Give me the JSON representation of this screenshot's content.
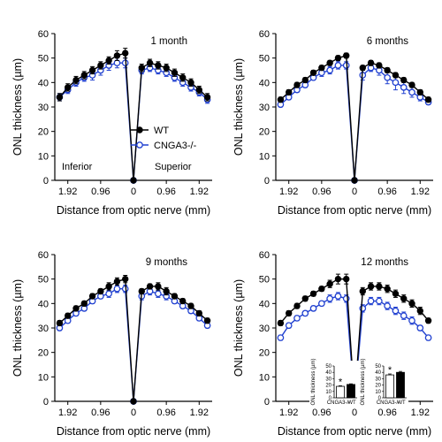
{
  "chart_data": [
    {
      "type": "line",
      "title": "1 month",
      "xlabel": "Distance from optic nerve (mm)",
      "ylabel": "ONL thickness (µm)",
      "xticks": [
        "1.92",
        "0.96",
        "0",
        "0.96",
        "1.92"
      ],
      "yticks": [
        "0",
        "10",
        "20",
        "30",
        "40",
        "50",
        "60"
      ],
      "ylim": [
        0,
        60
      ],
      "x": [
        -2.16,
        -1.92,
        -1.68,
        -1.44,
        -1.2,
        -0.96,
        -0.72,
        -0.48,
        -0.24,
        0,
        0.24,
        0.48,
        0.72,
        0.96,
        1.2,
        1.44,
        1.68,
        1.92,
        2.16
      ],
      "series": [
        {
          "name": "WT",
          "color": "#000000",
          "values": [
            34,
            38,
            41,
            43,
            45,
            47,
            49,
            51,
            52,
            0,
            46,
            48,
            47,
            46,
            44,
            42,
            40,
            37,
            34
          ],
          "errors": [
            1.5,
            1.5,
            1.5,
            1.5,
            1.5,
            1.5,
            1.5,
            2,
            2,
            0,
            1.5,
            1.5,
            1.5,
            1.5,
            1.5,
            1.5,
            1.5,
            1.5,
            1.5
          ]
        },
        {
          "name": "CNGA3-/-",
          "color": "#2040d0",
          "values": [
            34,
            37,
            40,
            42,
            43,
            45,
            47,
            48,
            48,
            0,
            45,
            46,
            45,
            44,
            42,
            40,
            38,
            36,
            33
          ],
          "errors": [
            1.5,
            1.5,
            1.5,
            1.5,
            2,
            2,
            2,
            2,
            2,
            0,
            1.5,
            1.5,
            1.5,
            1.5,
            1.5,
            1.5,
            1.5,
            1.5,
            1.5
          ]
        }
      ],
      "legend": "center-right",
      "annotations": [
        "Inferior",
        "Superior"
      ]
    },
    {
      "type": "line",
      "title": "6 months",
      "xlabel": "Distance from optic nerve (mm)",
      "ylabel": "ONL thickness (µm)",
      "xticks": [
        "1.92",
        "0.96",
        "0",
        "0.96",
        "1.92"
      ],
      "yticks": [
        "0",
        "10",
        "20",
        "30",
        "40",
        "50",
        "60"
      ],
      "ylim": [
        0,
        60
      ],
      "x": [
        -2.16,
        -1.92,
        -1.68,
        -1.44,
        -1.2,
        -0.96,
        -0.72,
        -0.48,
        -0.24,
        0,
        0.24,
        0.48,
        0.72,
        0.96,
        1.2,
        1.44,
        1.68,
        1.92,
        2.16
      ],
      "series": [
        {
          "name": "WT",
          "color": "#000000",
          "values": [
            33,
            36,
            39,
            41,
            44,
            46,
            48,
            50,
            51,
            0,
            46,
            48,
            47,
            45,
            43,
            41,
            39,
            36,
            33
          ],
          "errors": [
            1,
            1,
            1,
            1,
            1,
            1,
            1,
            1,
            1,
            0,
            1,
            1,
            1,
            1,
            1,
            1,
            1,
            1,
            1
          ]
        },
        {
          "name": "CNGA3-/-",
          "color": "#2040d0",
          "values": [
            31,
            34,
            37,
            39,
            42,
            44,
            45,
            47,
            47,
            0,
            43,
            46,
            45,
            42,
            40,
            38,
            36,
            34,
            32
          ],
          "errors": [
            1,
            1,
            1,
            1,
            1,
            1.5,
            1.5,
            1.5,
            1.5,
            0,
            2,
            1.5,
            2,
            2.5,
            3,
            2.5,
            2,
            1.5,
            1
          ]
        }
      ]
    },
    {
      "type": "line",
      "title": "9 months",
      "xlabel": "Distance from optic nerve (mm)",
      "ylabel": "ONL thickness (µm)",
      "xticks": [
        "1.92",
        "0.96",
        "0",
        "0.96",
        "1.92"
      ],
      "yticks": [
        "0",
        "10",
        "20",
        "30",
        "40",
        "50",
        "60"
      ],
      "ylim": [
        0,
        60
      ],
      "x": [
        -2.16,
        -1.92,
        -1.68,
        -1.44,
        -1.2,
        -0.96,
        -0.72,
        -0.48,
        -0.24,
        0,
        0.24,
        0.48,
        0.72,
        0.96,
        1.2,
        1.44,
        1.68,
        1.92,
        2.16
      ],
      "series": [
        {
          "name": "WT",
          "color": "#000000",
          "values": [
            32,
            35,
            38,
            40,
            43,
            45,
            47,
            49,
            50,
            0,
            45,
            47,
            47,
            45,
            43,
            41,
            39,
            36,
            33
          ],
          "errors": [
            1,
            1,
            1,
            1,
            1,
            1,
            1.5,
            1.5,
            1.5,
            0,
            1,
            1,
            1.5,
            1.5,
            1,
            1,
            1,
            1,
            1
          ]
        },
        {
          "name": "CNGA3-/-",
          "color": "#2040d0",
          "values": [
            30,
            33,
            36,
            38,
            41,
            43,
            44,
            46,
            46,
            0,
            43,
            45,
            44,
            43,
            41,
            39,
            37,
            34,
            31
          ],
          "errors": [
            1,
            1,
            1,
            1,
            1,
            1,
            1.5,
            1.5,
            1.5,
            0,
            1.5,
            1.5,
            1.5,
            1.5,
            1,
            1,
            1,
            1,
            1
          ]
        }
      ]
    },
    {
      "type": "line",
      "title": "12 months",
      "xlabel": "Distance from optic nerve (mm)",
      "ylabel": "ONL thickness (µm)",
      "xticks": [
        "1.92",
        "0.96",
        "0",
        "0.96",
        "1.92"
      ],
      "yticks": [
        "0",
        "10",
        "20",
        "30",
        "40",
        "50",
        "60"
      ],
      "ylim": [
        0,
        60
      ],
      "x": [
        -2.16,
        -1.92,
        -1.68,
        -1.44,
        -1.2,
        -0.96,
        -0.72,
        -0.48,
        -0.24,
        0,
        0.24,
        0.48,
        0.72,
        0.96,
        1.2,
        1.44,
        1.68,
        1.92,
        2.16
      ],
      "series": [
        {
          "name": "WT",
          "color": "#000000",
          "values": [
            32,
            36,
            39,
            42,
            44,
            46,
            48,
            50,
            50,
            0,
            45,
            47,
            47,
            46,
            44,
            42,
            40,
            37,
            33
          ],
          "errors": [
            1,
            1,
            1,
            1,
            1,
            1,
            1.5,
            2,
            2,
            0,
            1.5,
            1.5,
            1.5,
            1.5,
            1.5,
            1.5,
            1.5,
            1.5,
            1
          ]
        },
        {
          "name": "CNGA3-/-",
          "color": "#2040d0",
          "values": [
            26,
            31,
            34,
            36,
            38,
            40,
            42,
            43,
            42,
            0,
            38,
            41,
            41,
            39,
            37,
            35,
            33,
            30,
            26
          ],
          "errors": [
            1,
            1,
            1,
            1,
            1,
            1,
            1.5,
            1.5,
            1.5,
            0,
            1.5,
            1.5,
            1.5,
            1.5,
            1.5,
            1.5,
            1.5,
            1,
            1
          ]
        }
      ],
      "insets": [
        {
          "type": "bar",
          "ylabel": "ONL thickness (µm)",
          "yticks": [
            "0",
            "10",
            "20",
            "30",
            "40",
            "50"
          ],
          "ylim": [
            0,
            50
          ],
          "categories": [
            "CNGA3-/-",
            "WT"
          ],
          "values": [
            18,
            21
          ],
          "errors": [
            1,
            1
          ],
          "fills": [
            "#ffffff",
            "#000000"
          ],
          "significance": [
            "*",
            ""
          ]
        },
        {
          "type": "bar",
          "ylabel": "ONL thickness (µm)",
          "yticks": [
            "0",
            "10",
            "20",
            "30",
            "40",
            "50"
          ],
          "ylim": [
            0,
            50
          ],
          "categories": [
            "CNGA3-/-",
            "WT"
          ],
          "values": [
            36,
            40
          ],
          "errors": [
            1.5,
            1.5
          ],
          "fills": [
            "#ffffff",
            "#000000"
          ],
          "significance": [
            "*",
            ""
          ]
        }
      ]
    }
  ]
}
